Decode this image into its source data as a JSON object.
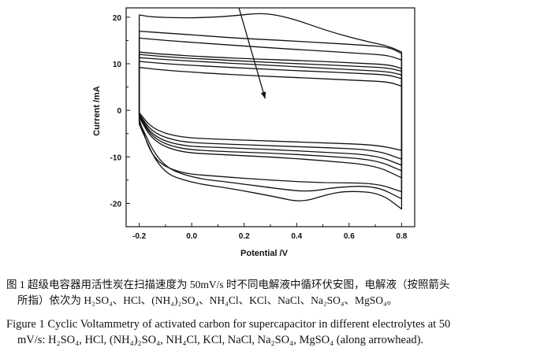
{
  "chart_data": {
    "type": "line",
    "xlabel": "Potential /V",
    "ylabel": "Current /mA",
    "xlim": [
      -0.25,
      0.85
    ],
    "ylim": [
      -25,
      22
    ],
    "x_ticks": [
      "-0.2",
      "0.0",
      "0.2",
      "0.4",
      "0.6",
      "0.8"
    ],
    "y_ticks": [
      "20",
      "10",
      "0",
      "-10",
      "-20"
    ],
    "series": [
      {
        "upper": [
          [
            -0.2,
            20.5
          ],
          [
            -0.15,
            20.0
          ],
          [
            0.0,
            19.8
          ],
          [
            0.15,
            20.2
          ],
          [
            0.27,
            21.0
          ],
          [
            0.38,
            19.8
          ],
          [
            0.52,
            17.0
          ],
          [
            0.65,
            15.0
          ],
          [
            0.75,
            13.8
          ],
          [
            0.8,
            12.5
          ]
        ],
        "lower": [
          [
            0.8,
            -21.2
          ],
          [
            0.72,
            -17.8
          ],
          [
            0.6,
            -17.3
          ],
          [
            0.52,
            -18.0
          ],
          [
            0.42,
            -19.8
          ],
          [
            0.32,
            -18.6
          ],
          [
            0.15,
            -16.8
          ],
          [
            0.0,
            -15.6
          ],
          [
            -0.12,
            -13.2
          ],
          [
            -0.2,
            -3.0
          ]
        ]
      },
      {
        "upper": [
          [
            -0.2,
            17.0
          ],
          [
            -0.1,
            16.6
          ],
          [
            0.05,
            16.0
          ],
          [
            0.2,
            15.4
          ],
          [
            0.35,
            15.0
          ],
          [
            0.5,
            14.5
          ],
          [
            0.65,
            14.0
          ],
          [
            0.75,
            13.6
          ],
          [
            0.8,
            12.2
          ]
        ],
        "lower": [
          [
            0.8,
            -19.0
          ],
          [
            0.7,
            -16.2
          ],
          [
            0.55,
            -16.5
          ],
          [
            0.45,
            -17.5
          ],
          [
            0.35,
            -17.0
          ],
          [
            0.15,
            -15.5
          ],
          [
            0.0,
            -14.5
          ],
          [
            -0.12,
            -11.8
          ],
          [
            -0.2,
            -2.5
          ]
        ]
      },
      {
        "upper": [
          [
            -0.2,
            15.5
          ],
          [
            -0.1,
            15.0
          ],
          [
            0.05,
            14.4
          ],
          [
            0.25,
            13.6
          ],
          [
            0.45,
            12.9
          ],
          [
            0.65,
            12.2
          ],
          [
            0.75,
            11.8
          ],
          [
            0.8,
            10.8
          ]
        ],
        "lower": [
          [
            0.8,
            -17.5
          ],
          [
            0.7,
            -15.6
          ],
          [
            0.5,
            -15.6
          ],
          [
            0.3,
            -15.0
          ],
          [
            0.1,
            -14.2
          ],
          [
            -0.05,
            -13.5
          ],
          [
            -0.15,
            -10.5
          ],
          [
            -0.2,
            -2.0
          ]
        ]
      },
      {
        "upper": [
          [
            -0.2,
            12.5
          ],
          [
            -0.1,
            12.0
          ],
          [
            0.05,
            11.5
          ],
          [
            0.25,
            11.0
          ],
          [
            0.45,
            10.6
          ],
          [
            0.65,
            10.1
          ],
          [
            0.75,
            9.8
          ],
          [
            0.8,
            9.0
          ]
        ],
        "lower": [
          [
            0.8,
            -14.5
          ],
          [
            0.7,
            -11.8
          ],
          [
            0.5,
            -10.8
          ],
          [
            0.3,
            -10.0
          ],
          [
            0.1,
            -9.5
          ],
          [
            -0.05,
            -9.0
          ],
          [
            -0.15,
            -6.5
          ],
          [
            -0.2,
            -1.5
          ]
        ]
      },
      {
        "upper": [
          [
            -0.2,
            12.0
          ],
          [
            -0.1,
            11.5
          ],
          [
            0.05,
            11.0
          ],
          [
            0.25,
            10.4
          ],
          [
            0.45,
            9.9
          ],
          [
            0.65,
            9.4
          ],
          [
            0.75,
            9.1
          ],
          [
            0.8,
            8.4
          ]
        ],
        "lower": [
          [
            0.8,
            -13.0
          ],
          [
            0.7,
            -10.6
          ],
          [
            0.5,
            -9.8
          ],
          [
            0.3,
            -9.2
          ],
          [
            0.1,
            -8.8
          ],
          [
            -0.05,
            -8.3
          ],
          [
            -0.15,
            -6.0
          ],
          [
            -0.2,
            -1.2
          ]
        ]
      },
      {
        "upper": [
          [
            -0.2,
            11.3
          ],
          [
            -0.1,
            10.9
          ],
          [
            0.05,
            10.4
          ],
          [
            0.25,
            9.8
          ],
          [
            0.45,
            9.2
          ],
          [
            0.65,
            8.6
          ],
          [
            0.75,
            8.3
          ],
          [
            0.8,
            7.6
          ]
        ],
        "lower": [
          [
            0.8,
            -11.8
          ],
          [
            0.7,
            -9.6
          ],
          [
            0.5,
            -9.0
          ],
          [
            0.3,
            -8.4
          ],
          [
            0.1,
            -8.0
          ],
          [
            -0.05,
            -7.6
          ],
          [
            -0.15,
            -5.5
          ],
          [
            -0.2,
            -1.0
          ]
        ]
      },
      {
        "upper": [
          [
            -0.2,
            10.5
          ],
          [
            -0.1,
            10.0
          ],
          [
            0.05,
            9.5
          ],
          [
            0.25,
            8.9
          ],
          [
            0.45,
            8.4
          ],
          [
            0.65,
            7.9
          ],
          [
            0.75,
            7.6
          ],
          [
            0.8,
            6.8
          ]
        ],
        "lower": [
          [
            0.8,
            -10.5
          ],
          [
            0.7,
            -8.5
          ],
          [
            0.5,
            -8.0
          ],
          [
            0.3,
            -7.6
          ],
          [
            0.1,
            -7.2
          ],
          [
            -0.05,
            -6.8
          ],
          [
            -0.15,
            -4.8
          ],
          [
            -0.2,
            -0.8
          ]
        ]
      },
      {
        "upper": [
          [
            -0.2,
            9.2
          ],
          [
            -0.1,
            8.6
          ],
          [
            0.05,
            8.0
          ],
          [
            0.25,
            7.4
          ],
          [
            0.45,
            6.9
          ],
          [
            0.65,
            6.4
          ],
          [
            0.75,
            6.1
          ],
          [
            0.8,
            5.2
          ]
        ],
        "lower": [
          [
            0.8,
            -8.6
          ],
          [
            0.7,
            -7.4
          ],
          [
            0.5,
            -7.0
          ],
          [
            0.3,
            -6.6
          ],
          [
            0.1,
            -6.2
          ],
          [
            -0.05,
            -5.8
          ],
          [
            -0.15,
            -4.0
          ],
          [
            -0.2,
            -0.5
          ]
        ]
      }
    ],
    "arrow": {
      "from": [
        0.18,
        22.0
      ],
      "to": [
        0.28,
        2.5
      ]
    }
  },
  "captions": {
    "chinese_line1": "图 1 超级电容器用活性炭在扫描速度为 50mV/s 时不同电解液中循环伏安图，电解液（按照箭头",
    "chinese_line2": "所指）依次为 H₂SO₄、HCl、(NH₄)₂SO₄、NH₄Cl、KCl、NaCl、Na₂SO₄、MgSO₄。",
    "english_line1": "Figure 1 Cyclic Voltammetry of activated carbon for supercapacitor in different electrolytes at 50",
    "english_line2": "mV/s: H₂SO₄, HCl, (NH₄)₂SO₄, NH₄Cl, KCl, NaCl, Na₂SO₄, MgSO₄ (along arrowhead)."
  },
  "colors": {
    "ink": "#111111",
    "background": "#ffffff"
  }
}
